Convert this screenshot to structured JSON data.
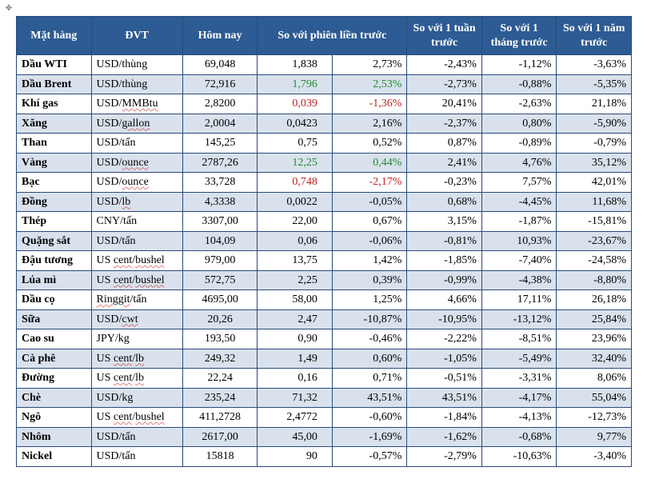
{
  "columns": [
    "Mặt hàng",
    "ĐVT",
    "Hôm nay",
    "So với phiên liền trước",
    "So với 1 tuần trước",
    "So với 1 tháng trước",
    "So với 1 năm trước"
  ],
  "rows": [
    {
      "band": false,
      "name": "Dầu WTI",
      "unit": "USD/thùng",
      "today": "69,048",
      "d_abs": "1,838",
      "d_abs_c": null,
      "d_pct": "2,73%",
      "d_pct_c": null,
      "w": "-2,43%",
      "m": "-1,12%",
      "y": "-3,63%"
    },
    {
      "band": true,
      "name": "Dầu Brent",
      "unit": "USD/thùng",
      "today": "72,916",
      "d_abs": "1,796",
      "d_abs_c": "pos",
      "d_pct": "2,53%",
      "d_pct_c": "pos",
      "w": "-2,73%",
      "m": "-0,88%",
      "y": "-5,35%"
    },
    {
      "band": false,
      "name": "Khí gas",
      "unit_html": "USD/<span class='squig'>MMBtu</span>",
      "today": "2,8200",
      "d_abs": "0,039",
      "d_abs_c": "neg",
      "d_pct": "-1,36%",
      "d_pct_c": "neg",
      "w": "20,41%",
      "m": "-2,63%",
      "y": "21,18%"
    },
    {
      "band": true,
      "name": "Xăng",
      "unit_html": "USD/<span class='squig'>gallon</span>",
      "today": "2,0004",
      "d_abs": "0,0423",
      "d_abs_c": null,
      "d_pct": "2,16%",
      "d_pct_c": null,
      "w": "-2,37%",
      "m": "0,80%",
      "y": "-5,90%"
    },
    {
      "band": false,
      "name": "Than",
      "unit": "USD/tấn",
      "today": "145,25",
      "d_abs": "0,75",
      "d_abs_c": null,
      "d_pct": "0,52%",
      "d_pct_c": null,
      "w": "0,87%",
      "m": "-0,89%",
      "y": "-0,79%"
    },
    {
      "band": true,
      "name": "Vàng",
      "unit_html": "USD/<span class='squig'>ounce</span>",
      "today": "2787,26",
      "d_abs": "12,25",
      "d_abs_c": "pos",
      "d_pct": "0,44%",
      "d_pct_c": "pos",
      "w": "2,41%",
      "m": "4,76%",
      "y": "35,12%"
    },
    {
      "band": false,
      "name": "Bạc",
      "unit_html": "USD/<span class='squig'>ounce</span>",
      "today": "33,728",
      "d_abs": "0,748",
      "d_abs_c": "neg",
      "d_pct": "-2,17%",
      "d_pct_c": "neg",
      "w": "-0,23%",
      "m": "7,57%",
      "y": "42,01%"
    },
    {
      "band": true,
      "name": "Đồng",
      "unit_html": "USD/<span class='squig'>lb</span>",
      "today": "4,3338",
      "d_abs": "0,0022",
      "d_abs_c": null,
      "d_pct": "-0,05%",
      "d_pct_c": null,
      "w": "0,68%",
      "m": "-4,45%",
      "y": "11,68%"
    },
    {
      "band": false,
      "name": "Thép",
      "unit": "CNY/tấn",
      "today": "3307,00",
      "d_abs": "22,00",
      "d_abs_c": null,
      "d_pct": "0,67%",
      "d_pct_c": null,
      "w": "3,15%",
      "m": "-1,87%",
      "y": "-15,81%"
    },
    {
      "band": true,
      "name": "Quặng sắt",
      "unit": "USD/tấn",
      "today": "104,09",
      "d_abs": "0,06",
      "d_abs_c": null,
      "d_pct": "-0,06%",
      "d_pct_c": null,
      "w": "-0,81%",
      "m": "10,93%",
      "y": "-23,67%"
    },
    {
      "band": false,
      "name": "Đậu tương",
      "unit_html": "US <span class='squig'>cent</span>/<span class='squig'>bushel</span>",
      "today": "979,00",
      "d_abs": "13,75",
      "d_abs_c": null,
      "d_pct": "1,42%",
      "d_pct_c": null,
      "w": "-1,85%",
      "m": "-7,40%",
      "y": "-24,58%"
    },
    {
      "band": true,
      "name": "Lúa mì",
      "unit_html": "US <span class='squig'>cent</span>/<span class='squig'>bushel</span>",
      "today": "572,75",
      "d_abs": "2,25",
      "d_abs_c": null,
      "d_pct": "0,39%",
      "d_pct_c": null,
      "w": "-0,99%",
      "m": "-4,38%",
      "y": "-8,80%"
    },
    {
      "band": false,
      "name": "Dầu cọ",
      "unit_html": "<span class='squig'>Ringgit</span>/tấn",
      "today": "4695,00",
      "d_abs": "58,00",
      "d_abs_c": null,
      "d_pct": "1,25%",
      "d_pct_c": null,
      "w": "4,66%",
      "m": "17,11%",
      "y": "26,18%"
    },
    {
      "band": true,
      "name": "Sữa",
      "unit_html": "USD/<span class='squig'>cwt</span>",
      "today": "20,26",
      "d_abs": "2,47",
      "d_abs_c": null,
      "d_pct": "-10,87%",
      "d_pct_c": null,
      "w": "-10,95%",
      "m": "-13,12%",
      "y": "25,84%"
    },
    {
      "band": false,
      "name": "Cao su",
      "unit": "JPY/kg",
      "today": "193,50",
      "d_abs": "0,90",
      "d_abs_c": null,
      "d_pct": "-0,46%",
      "d_pct_c": null,
      "w": "-2,22%",
      "m": "-8,51%",
      "y": "23,96%"
    },
    {
      "band": true,
      "name": "Cà phê",
      "unit_html": "US <span class='squig'>cent</span>/<span class='squig'>lb</span>",
      "today": "249,32",
      "d_abs": "1,49",
      "d_abs_c": null,
      "d_pct": "0,60%",
      "d_pct_c": null,
      "w": "-1,05%",
      "m": "-5,49%",
      "y": "32,40%"
    },
    {
      "band": false,
      "name": "Đường",
      "unit_html": "US <span class='squig'>cent</span>/<span class='squig'>lb</span>",
      "today": "22,24",
      "d_abs": "0,16",
      "d_abs_c": null,
      "d_pct": "0,71%",
      "d_pct_c": null,
      "w": "-0,51%",
      "m": "-3,31%",
      "y": "8,06%"
    },
    {
      "band": true,
      "name": "Chè",
      "unit": "USD/kg",
      "today": "235,24",
      "d_abs": "71,32",
      "d_abs_c": null,
      "d_pct": "43,51%",
      "d_pct_c": null,
      "w": "43,51%",
      "m": "-4,17%",
      "y": "55,04%"
    },
    {
      "band": false,
      "name": "Ngô",
      "unit_html": "US <span class='squig'>cent</span>/<span class='squig'>bushel</span>",
      "today": "411,2728",
      "d_abs": "2,4772",
      "d_abs_c": null,
      "d_pct": "-0,60%",
      "d_pct_c": null,
      "w": "-1,84%",
      "m": "-4,13%",
      "y": "-12,73%"
    },
    {
      "band": true,
      "name": "Nhôm",
      "unit": "USD/tấn",
      "today": "2617,00",
      "d_abs": "45,00",
      "d_abs_c": null,
      "d_pct": "-1,69%",
      "d_pct_c": null,
      "w": "-1,62%",
      "m": "-0,68%",
      "y": "9,77%"
    },
    {
      "band": false,
      "name": "Nickel",
      "unit": "USD/tấn",
      "today": "15818",
      "d_abs": "90",
      "d_abs_c": null,
      "d_pct": "-0,57%",
      "d_pct_c": null,
      "w": "-2,79%",
      "m": "-10,63%",
      "y": "-3,40%"
    }
  ]
}
